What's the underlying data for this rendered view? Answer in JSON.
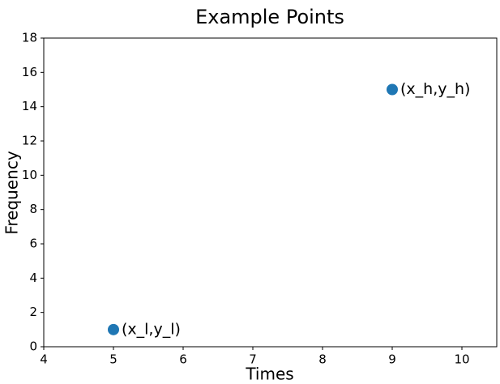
{
  "chart_data": {
    "type": "scatter",
    "title": "Example Points",
    "xlabel": "Times",
    "ylabel": "Frequency",
    "xlim": [
      4,
      10.5
    ],
    "ylim": [
      0,
      18
    ],
    "xticks": [
      4,
      5,
      6,
      7,
      8,
      9,
      10
    ],
    "yticks": [
      0,
      2,
      4,
      6,
      8,
      10,
      12,
      14,
      16,
      18
    ],
    "grid": false,
    "series": [
      {
        "points": [
          {
            "x": 5,
            "y": 1,
            "label": "(x_l,y_l)"
          },
          {
            "x": 9,
            "y": 15,
            "label": "(x_h,y_h)"
          }
        ],
        "color": "#1f77b4"
      }
    ]
  }
}
